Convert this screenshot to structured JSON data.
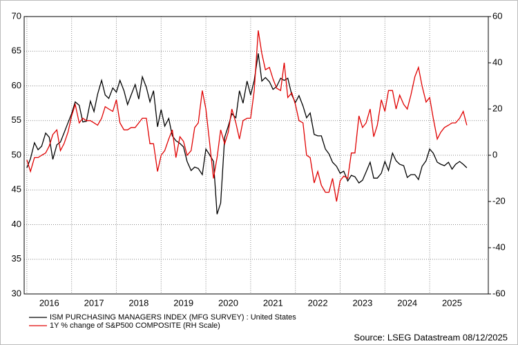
{
  "chart_data": {
    "type": "line",
    "x": [
      2016.0,
      2016.08,
      2016.17,
      2016.25,
      2016.33,
      2016.42,
      2016.5,
      2016.58,
      2016.67,
      2016.75,
      2016.83,
      2016.92,
      2017.0,
      2017.08,
      2017.17,
      2017.25,
      2017.33,
      2017.42,
      2017.5,
      2017.58,
      2017.67,
      2017.75,
      2017.83,
      2017.92,
      2018.0,
      2018.08,
      2018.17,
      2018.25,
      2018.33,
      2018.42,
      2018.5,
      2018.58,
      2018.67,
      2018.75,
      2018.83,
      2018.92,
      2019.0,
      2019.08,
      2019.17,
      2019.25,
      2019.33,
      2019.42,
      2019.5,
      2019.58,
      2019.67,
      2019.75,
      2019.83,
      2019.92,
      2020.0,
      2020.08,
      2020.17,
      2020.25,
      2020.33,
      2020.42,
      2020.5,
      2020.58,
      2020.67,
      2020.75,
      2020.83,
      2020.92,
      2021.0,
      2021.08,
      2021.17,
      2021.25,
      2021.33,
      2021.42,
      2021.5,
      2021.58,
      2021.67,
      2021.75,
      2021.83,
      2021.92,
      2022.0,
      2022.08,
      2022.17,
      2022.25,
      2022.33,
      2022.42,
      2022.5,
      2022.58,
      2022.67,
      2022.75,
      2022.83,
      2022.92,
      2023.0,
      2023.08,
      2023.17,
      2023.25,
      2023.33,
      2023.42,
      2023.5,
      2023.58,
      2023.67,
      2023.75,
      2023.83,
      2023.92,
      2024.0,
      2024.08,
      2024.17,
      2024.25,
      2024.33,
      2024.42,
      2024.5,
      2024.58,
      2024.67,
      2024.75,
      2024.83,
      2024.92,
      2025.0,
      2025.08,
      2025.17,
      2025.25,
      2025.33,
      2025.42,
      2025.5,
      2025.58,
      2025.67,
      2025.75,
      2025.83
    ],
    "series": [
      {
        "name": "ISM PURCHASING MANAGERS INDEX (MFG SURVEY) : United States",
        "color": "#000000",
        "values": [
          48.2,
          49.5,
          51.8,
          50.8,
          51.3,
          53.2,
          52.6,
          49.4,
          51.5,
          51.9,
          53.2,
          54.7,
          56.0,
          57.7,
          57.2,
          54.8,
          54.9,
          57.8,
          56.3,
          58.8,
          60.8,
          58.7,
          58.2,
          59.7,
          59.1,
          60.8,
          59.3,
          57.3,
          58.7,
          60.2,
          58.1,
          61.3,
          59.8,
          57.7,
          59.3,
          54.1,
          56.6,
          54.2,
          55.3,
          52.8,
          52.1,
          51.7,
          51.2,
          49.1,
          47.8,
          48.3,
          48.1,
          47.2,
          50.9,
          50.1,
          49.1,
          41.5,
          43.1,
          52.6,
          54.2,
          56.0,
          55.4,
          59.3,
          57.5,
          60.7,
          58.7,
          60.8,
          64.7,
          60.7,
          61.2,
          60.6,
          59.5,
          59.9,
          61.1,
          60.8,
          61.1,
          58.7,
          57.6,
          58.6,
          57.1,
          55.4,
          56.1,
          53.0,
          52.8,
          52.8,
          50.9,
          50.2,
          49.0,
          48.4,
          47.4,
          47.7,
          46.3,
          47.1,
          46.9,
          46.0,
          46.4,
          47.6,
          49.0,
          46.7,
          46.7,
          47.4,
          49.1,
          47.8,
          50.3,
          49.2,
          48.7,
          48.5,
          46.8,
          47.2,
          47.2,
          46.5,
          48.4,
          49.2,
          50.9,
          50.3,
          49.0,
          48.7,
          48.5,
          49.0,
          48.0,
          48.7,
          49.1,
          48.7,
          48.2
        ]
      },
      {
        "name": "1Y % change of S&P500 COMPOSITE (RH Scale)",
        "color": "#e00000",
        "axis": "y2",
        "values": [
          -2,
          -7,
          -1,
          -1,
          0,
          1,
          4,
          9,
          11,
          2,
          5,
          10,
          17,
          22,
          14,
          16,
          15,
          15,
          14,
          13,
          16,
          21,
          20,
          19,
          24,
          14,
          11,
          11,
          12,
          12,
          14,
          16,
          16,
          5,
          5,
          -7,
          0,
          2,
          7,
          11,
          -1,
          8,
          6,
          0,
          2,
          12,
          14,
          28,
          20,
          6,
          -10,
          -1,
          11,
          5,
          10,
          20,
          14,
          7,
          15,
          16,
          16,
          28,
          54,
          44,
          37,
          38,
          33,
          29,
          28,
          40,
          25,
          27,
          22,
          15,
          14,
          0,
          -1,
          -12,
          -7,
          -13,
          -16,
          -16,
          -10,
          -20,
          -11,
          -9,
          -10,
          1,
          1,
          17,
          12,
          14,
          20,
          8,
          13,
          24,
          19,
          28,
          28,
          20,
          26,
          22,
          20,
          26,
          34,
          38,
          30,
          23,
          25,
          16,
          7,
          10,
          12,
          13,
          14,
          14,
          16,
          19,
          13
        ]
      }
    ],
    "xlim": [
      2015.94,
      2026.31
    ],
    "xticks": [
      2016,
      2017,
      2018,
      2019,
      2020,
      2021,
      2022,
      2023,
      2024,
      2025
    ],
    "ylim": [
      30,
      70
    ],
    "yticks": [
      30,
      35,
      40,
      45,
      50,
      55,
      60,
      65,
      70
    ],
    "y2lim": [
      -60,
      60
    ],
    "y2ticks": [
      -60,
      -40,
      -20,
      0,
      20,
      40,
      60
    ],
    "grid": true,
    "source": "Source: LSEG Datastream 08/12/2025"
  }
}
